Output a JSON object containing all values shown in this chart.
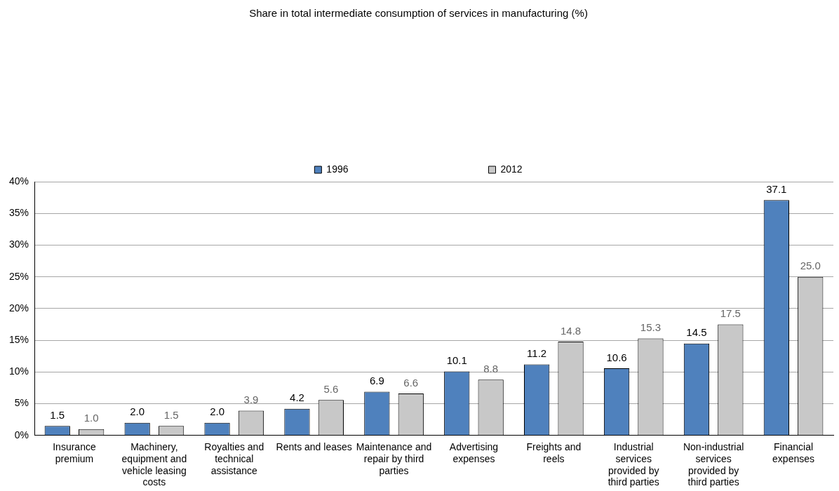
{
  "chart_data": {
    "type": "bar",
    "title": "Share in total intermediate consumption of services in manufacturing (%)",
    "categories": [
      "Insurance premium",
      "Machinery, equipment and vehicle leasing costs",
      "Royalties and technical assistance",
      "Rents and leases",
      "Maintenance and repair by third parties",
      "Advertising expenses",
      "Freights and reels",
      "Industrial services provided by third parties",
      "Non-industrial services provided by third parties",
      "Financial expenses"
    ],
    "series": [
      {
        "name": "1996",
        "color": "#4f81bd",
        "values": [
          1.5,
          2.0,
          2.0,
          4.2,
          6.9,
          10.1,
          11.2,
          10.6,
          14.5,
          37.1
        ],
        "value_labels": [
          "1.5",
          "2.0",
          "2.0",
          "4.2",
          "6.9",
          "10.1",
          "11.2",
          "10.6",
          "14.5",
          "37.1"
        ]
      },
      {
        "name": "2012",
        "color": "#c8c8c8",
        "values": [
          1.0,
          1.5,
          3.9,
          5.6,
          6.6,
          8.8,
          14.8,
          15.3,
          17.5,
          25.0
        ],
        "value_labels": [
          "1.0",
          "1.5",
          "3.9",
          "5.6",
          "6.6",
          "8.8",
          "14.8",
          "15.3",
          "17.5",
          "25.0"
        ]
      }
    ],
    "ylim": [
      0,
      40
    ],
    "yticks": [
      {
        "value": 0,
        "label": "0%"
      },
      {
        "value": 5,
        "label": "5%"
      },
      {
        "value": 10,
        "label": "10%"
      },
      {
        "value": 15,
        "label": "15%"
      },
      {
        "value": 20,
        "label": "20%"
      },
      {
        "value": 25,
        "label": "25%"
      },
      {
        "value": 30,
        "label": "30%"
      },
      {
        "value": 35,
        "label": "35%"
      },
      {
        "value": 40,
        "label": "40%"
      }
    ],
    "grid": "y",
    "legend": "top"
  }
}
